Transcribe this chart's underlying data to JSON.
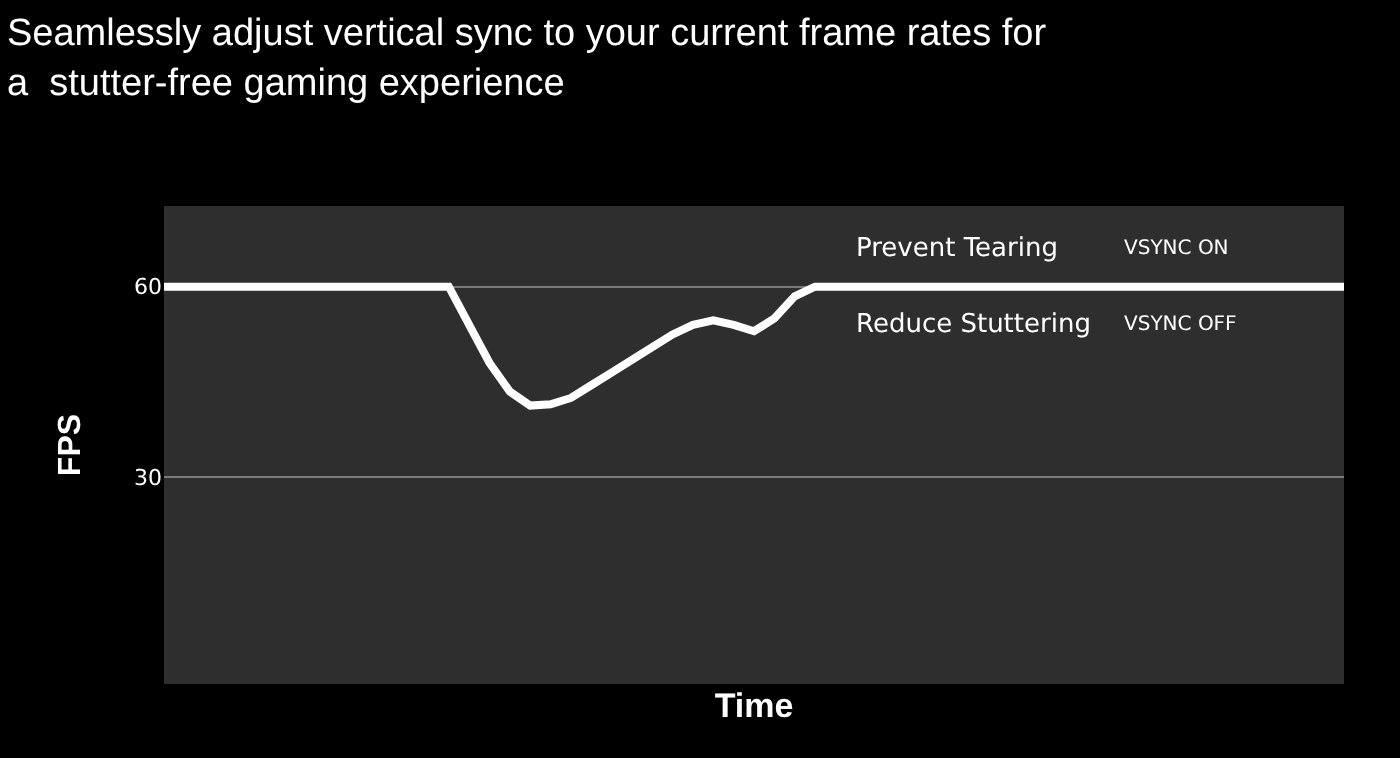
{
  "chart_data": {
    "type": "line",
    "title": "Seamlessly adjust vertical sync to your current frame rates for\na  stutter-free gaming experience",
    "xlabel": "Time",
    "ylabel": "FPS",
    "categories": [
      null,
      null,
      null,
      null,
      null,
      null,
      null,
      null,
      null,
      null,
      null,
      null,
      null,
      null,
      null,
      null,
      null,
      null,
      null,
      null,
      null,
      null,
      null,
      null,
      null,
      null,
      null,
      null,
      null,
      null,
      null,
      null,
      null,
      null,
      null,
      null,
      null,
      null,
      null,
      null,
      null,
      null,
      null,
      null,
      null,
      null,
      null,
      null,
      null,
      null,
      null,
      null,
      null,
      null,
      null,
      null,
      null,
      null,
      null
    ],
    "series": [
      {
        "color": "#ffffff",
        "values": [
          60,
          60,
          60,
          60,
          60,
          60,
          60,
          60,
          60,
          60,
          60,
          60,
          60,
          60,
          60,
          54,
          48,
          43.5,
          41.3,
          41.5,
          42.5,
          44.5,
          46.5,
          48.5,
          50.5,
          52.5,
          54,
          54.7,
          54,
          53,
          55,
          58.5,
          60,
          60,
          60,
          60,
          60,
          60,
          60,
          60,
          60,
          60,
          60,
          60,
          60,
          60,
          60,
          60,
          60,
          60,
          60,
          60,
          60,
          60,
          60,
          60,
          60,
          60,
          60
        ]
      }
    ],
    "ylim": [
      -2.5,
      72.7
    ],
    "yticks": [
      30,
      60
    ],
    "grid": "y",
    "marker": "none",
    "line_style": "solid",
    "annotations": [
      "Prevent Tearing",
      "VSYNC ON",
      "Reduce Stuttering",
      "VSYNC OFF"
    ]
  }
}
